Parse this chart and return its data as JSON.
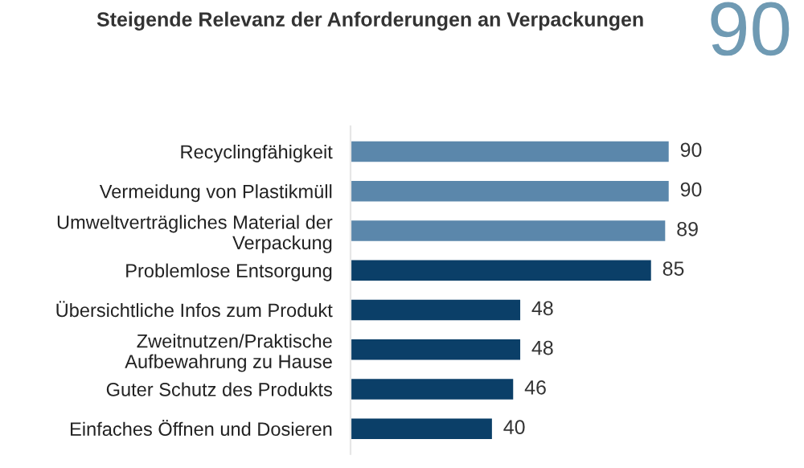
{
  "chart_data": {
    "type": "bar",
    "orientation": "horizontal",
    "title": "Steigende Relevanz der Anforderungen an Verpackungen",
    "annotations": [
      "90"
    ],
    "categories": [
      "Recyclingfähigkeit",
      "Vermeidung von Plastikmüll",
      "Umweltverträgliches Material der\nVerpackung",
      "Problemlose Entsorgung",
      "Übersichtliche Infos zum Produkt",
      "Zweitnutzen/Praktische\nAufbewahrung zu Hause",
      "Guter Schutz des Produkts",
      "Einfaches Öffnen und Dosieren"
    ],
    "values": [
      90,
      90,
      89,
      85,
      48,
      48,
      46,
      40
    ],
    "colors": [
      "#5b87ab",
      "#5b87ab",
      "#5b87ab",
      "#0b3f68",
      "#0b3f68",
      "#0b3f68",
      "#0b3f68",
      "#0b3f68"
    ],
    "data_labels": true,
    "tick_labels": "y",
    "grid": false,
    "legend": false
  }
}
